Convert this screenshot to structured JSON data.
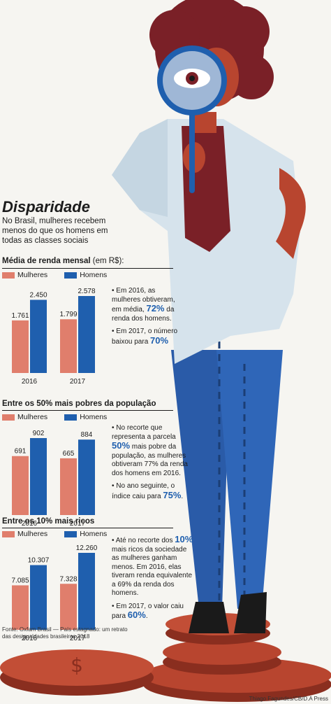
{
  "title": "Disparidade",
  "subtitle": "No Brasil, mulheres recebem menos do que os homens em todas as classes sociais",
  "colors": {
    "mulheres": "#e07e6c",
    "homens": "#1f5fae"
  },
  "legend": {
    "mulheres": "Mulheres",
    "homens": "Homens"
  },
  "sections": [
    {
      "title": "Média de renda mensal",
      "unit": " (em R$):",
      "notes": [
        {
          "pre": "• Em 2016, as mulheres obtiveram, em média, ",
          "bold": "72%",
          "post": " da renda dos homens."
        },
        {
          "pre": "• Em 2017, o número baixou para ",
          "bold": "70%",
          "post": ""
        }
      ]
    },
    {
      "title": "Entre os 50% mais pobres da população",
      "unit": "",
      "notes": [
        {
          "pre": "• No recorte que representa a parcela ",
          "bold": "50%",
          "post": " mais pobre da população, as mulheres obtiveram 77% da renda dos homens em 2016."
        },
        {
          "pre": "• No ano seguinte, o índice caiu para ",
          "bold": "75%",
          "post": "."
        }
      ]
    },
    {
      "title": "Entre os 10% mais ricos",
      "unit": "",
      "notes": [
        {
          "pre": "• Até no recorte dos ",
          "bold": "10%",
          "post": " mais ricos da sociedade as mulheres ganham menos. Em 2016, elas tiveram renda equivalente a 69% da renda dos homens."
        },
        {
          "pre": "• Em 2017, o valor caiu para ",
          "bold": "60%",
          "post": "."
        }
      ]
    }
  ],
  "chart_data": [
    {
      "type": "bar",
      "categories": [
        "2016",
        "2017"
      ],
      "series": [
        {
          "name": "Mulheres",
          "values": [
            1761,
            1799
          ],
          "labels": [
            "1.761",
            "1.799"
          ]
        },
        {
          "name": "Homens",
          "values": [
            2450,
            2578
          ],
          "labels": [
            "2.450",
            "2.578"
          ]
        }
      ],
      "title": "Média de renda mensal (em R$):",
      "ylim": [
        0,
        2578
      ]
    },
    {
      "type": "bar",
      "categories": [
        "2016",
        "2017"
      ],
      "series": [
        {
          "name": "Mulheres",
          "values": [
            691,
            665
          ],
          "labels": [
            "691",
            "665"
          ]
        },
        {
          "name": "Homens",
          "values": [
            902,
            884
          ],
          "labels": [
            "902",
            "884"
          ]
        }
      ],
      "title": "Entre os 50% mais pobres da população",
      "ylim": [
        0,
        902
      ]
    },
    {
      "type": "bar",
      "categories": [
        "2016",
        "2017"
      ],
      "series": [
        {
          "name": "Mulheres",
          "values": [
            7085,
            7328
          ],
          "labels": [
            "7.085",
            "7.328"
          ]
        },
        {
          "name": "Homens",
          "values": [
            10307,
            12260
          ],
          "labels": [
            "10.307",
            "12.260"
          ]
        }
      ],
      "title": "Entre os 10% mais ricos",
      "ylim": [
        0,
        12260
      ]
    }
  ],
  "source": "Fonte: Oxfam Brasil — País estagnado: um retrato das desigualdades brasileiras 2018",
  "credit": "Thiago Fagundes/CB/D.A Press"
}
